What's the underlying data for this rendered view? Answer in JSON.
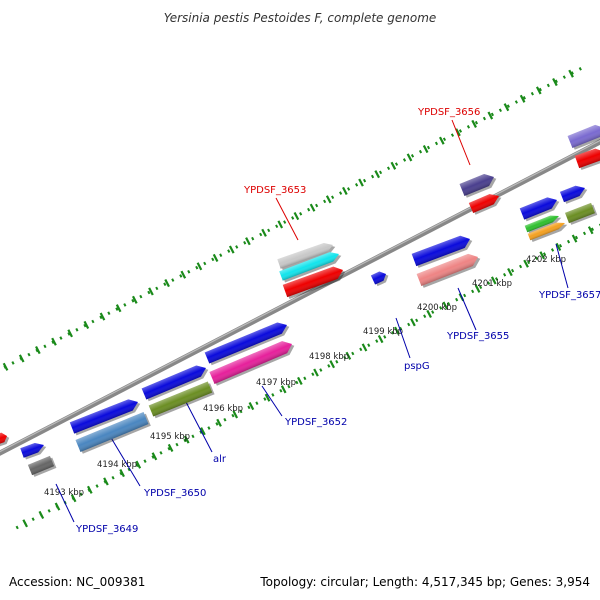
{
  "title": "Yersinia pestis Pestoides F, complete genome",
  "footer": {
    "accession": "Accession: NC_009381",
    "topology": "Topology: circular; Length: 4,517,345 bp; Genes: 3,954"
  },
  "ticks": [
    "4193 kbp",
    "4194 kbp",
    "4195 kbp",
    "4196 kbp",
    "4197 kbp",
    "4198 kbp",
    "4199 kbp",
    "4200 kbp",
    "4201 kbp",
    "4202 kbp"
  ],
  "gene_labels": {
    "g3649": "YPDSF_3649",
    "g3650": "YPDSF_3650",
    "alr": "alr",
    "g3652": "YPDSF_3652",
    "g3653": "YPDSF_3653",
    "pspG": "pspG",
    "g3655": "YPDSF_3655",
    "g3656": "YPDSF_3656",
    "g3657": "YPDSF_3657"
  },
  "colors": {
    "backbone": "#888888",
    "grid": "#1a8a1a",
    "label_red": "#dd0000",
    "label_blue": "#0000aa",
    "blue": "#0a0adc",
    "red": "#ee0000",
    "steel": "#4a86c0",
    "olive": "#6b8e23",
    "magenta": "#e6209b",
    "grey": "#666666",
    "light_grey": "#c8c8c8",
    "cyan": "#12e4ec",
    "salmon": "#ee8484",
    "slate": "#4a3f8e",
    "lavender": "#7a6ad0",
    "green": "#2ec02e",
    "orange": "#f4a020"
  }
}
